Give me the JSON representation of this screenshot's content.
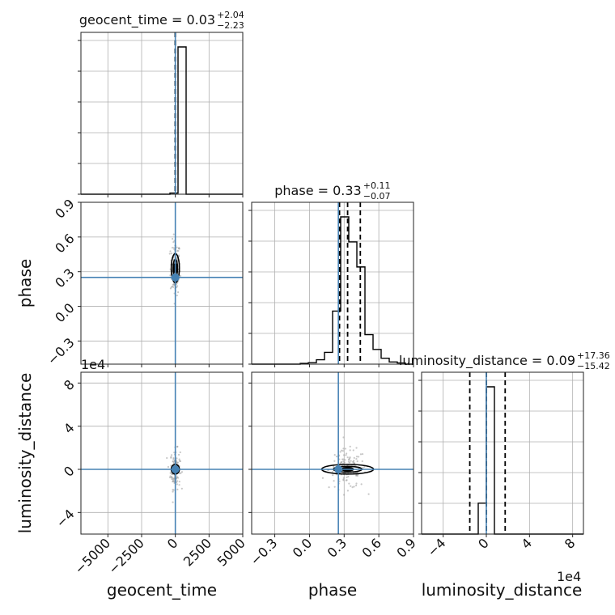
{
  "chart_data": {
    "type": "corner",
    "parameters": [
      "geocent_time",
      "phase",
      "luminosity_distance"
    ],
    "truths": {
      "geocent_time": 0,
      "phase": 0.25,
      "luminosity_distance": 0
    },
    "ranges": {
      "geocent_time": [
        -7000,
        5000
      ],
      "phase": [
        -0.5,
        0.9
      ],
      "luminosity_distance": [
        -60000,
        90000
      ]
    },
    "ticks": {
      "geocent_time": {
        "values": [
          -5000,
          -2500,
          0,
          2500,
          5000
        ],
        "labels": [
          "−5000",
          "−2500",
          "0",
          "2500",
          "5000"
        ]
      },
      "phase": {
        "values": [
          -0.3,
          0.0,
          0.3,
          0.6,
          0.9
        ],
        "labels": [
          "−0.3",
          "0.0",
          "0.3",
          "0.6",
          "0.9"
        ]
      },
      "luminosity_distance": {
        "values": [
          -40000,
          0,
          40000,
          80000
        ],
        "labels": [
          "−4",
          "0",
          "4",
          "8"
        ]
      }
    },
    "offset_text": {
      "luminosity_distance_y": "1e4",
      "luminosity_distance_x": "1e4"
    },
    "titles": [
      {
        "param": "geocent_time",
        "label": "geocent_time = 0.03",
        "sup": "+2.04",
        "sub": "−2.23"
      },
      {
        "param": "phase",
        "label": "phase = 0.33",
        "sup": "+0.11",
        "sub": "−0.07"
      },
      {
        "param": "luminosity_distance",
        "label": "luminosity_distance = 0.09",
        "sup": "+17.36",
        "sub": "−15.42"
      }
    ],
    "quantile_lines": {
      "geocent_time": [
        -2.2,
        0.03,
        2.07
      ],
      "phase": [
        0.26,
        0.33,
        0.44
      ],
      "luminosity_distance": [
        -15330,
        90,
        17450
      ]
    },
    "histograms": {
      "geocent_time": {
        "edges": [
          -7000,
          -6400,
          -5800,
          -5200,
          -4600,
          -4000,
          -3400,
          -2800,
          -2200,
          -1600,
          -1000,
          -400,
          200,
          800,
          1400,
          2000,
          2600,
          3200,
          3800,
          4400,
          5000
        ],
        "counts": [
          0,
          0,
          0,
          0,
          0,
          0,
          0,
          0,
          0,
          0,
          0,
          0.008,
          1.0,
          0,
          0,
          0,
          0,
          0,
          0,
          0
        ]
      },
      "phase": {
        "edges": [
          -0.5,
          -0.43,
          -0.36,
          -0.29,
          -0.22,
          -0.15,
          -0.08,
          -0.01,
          0.06,
          0.13,
          0.2,
          0.27,
          0.34,
          0.41,
          0.48,
          0.55,
          0.62,
          0.69,
          0.76,
          0.83,
          0.9
        ],
        "counts": [
          0,
          0,
          0,
          0,
          0,
          0,
          0.005,
          0.01,
          0.03,
          0.08,
          0.36,
          1.0,
          0.83,
          0.66,
          0.2,
          0.1,
          0.04,
          0.015,
          0.008,
          0
        ]
      },
      "luminosity_distance": {
        "edges": [
          -60000,
          -52500,
          -45000,
          -37500,
          -30000,
          -22500,
          -15000,
          -7500,
          0,
          7500,
          15000,
          22500,
          30000,
          37500,
          45000,
          52500,
          60000,
          67500,
          75000,
          82500,
          90000
        ],
        "counts": [
          0,
          0,
          0,
          0,
          0,
          0,
          0,
          0.21,
          1.0,
          0,
          0,
          0,
          0,
          0,
          0,
          0,
          0,
          0,
          0,
          0
        ]
      }
    },
    "xlabels": [
      "geocent_time",
      "phase",
      "luminosity_distance"
    ],
    "ylabels": [
      "phase",
      "luminosity_distance"
    ],
    "grid": true
  }
}
